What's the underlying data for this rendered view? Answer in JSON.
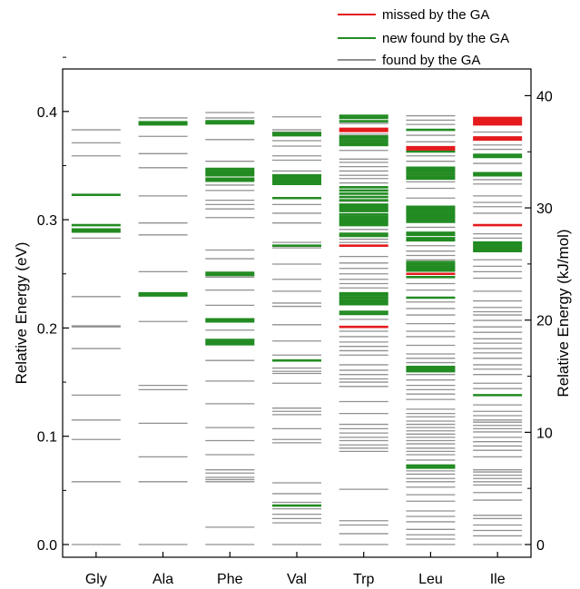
{
  "chart_data": {
    "type": "line",
    "title": "",
    "xlabel": "",
    "ylabel": "Relative Energy (eV)",
    "ylabel_right": "Relative Energy (kJ/mol)",
    "ylim": [
      -0.015,
      0.45
    ],
    "yticks": [
      0.0,
      0.1,
      0.2,
      0.3,
      0.4
    ],
    "ytick_labels": [
      "0.0",
      "0.1",
      "0.2",
      "0.3",
      "0.4"
    ],
    "ylim_right": [
      -1.447,
      43.42
    ],
    "yticks_right": [
      0,
      10,
      20,
      30,
      40
    ],
    "ytick_labels_right": [
      "0",
      "10",
      "20",
      "30",
      "40"
    ],
    "categories": [
      "Gly",
      "Ala",
      "Phe",
      "Val",
      "Trp",
      "Leu",
      "Ile"
    ],
    "legend": {
      "position": "top-right",
      "entries": [
        {
          "label": "missed by the GA",
          "color": "#e41a1c"
        },
        {
          "label": "new found by the GA",
          "color": "#228b22"
        },
        {
          "label": "found by the GA",
          "color": "#909090"
        }
      ]
    },
    "series": [
      {
        "name": "Gly",
        "found": [
          0.0,
          0.058,
          0.097,
          0.115,
          0.138,
          0.181,
          0.201,
          0.202,
          0.229,
          0.283,
          0.359,
          0.371,
          0.383
        ],
        "new_found": [
          0.289,
          0.291,
          0.295,
          0.323
        ],
        "missed": []
      },
      {
        "name": "Ala",
        "found": [
          0.0,
          0.058,
          0.081,
          0.112,
          0.143,
          0.147,
          0.206,
          0.252,
          0.286,
          0.297,
          0.322,
          0.348,
          0.361,
          0.377,
          0.394
        ],
        "new_found": [
          0.23,
          0.232,
          0.388,
          0.39
        ],
        "missed": []
      },
      {
        "name": "Phe",
        "found": [
          0.0,
          0.016,
          0.058,
          0.06,
          0.062,
          0.066,
          0.069,
          0.083,
          0.096,
          0.108,
          0.13,
          0.151,
          0.17,
          0.198,
          0.221,
          0.235,
          0.247,
          0.264,
          0.272,
          0.302,
          0.31,
          0.314,
          0.318,
          0.327,
          0.332,
          0.354,
          0.374,
          0.394,
          0.399
        ],
        "new_found": [
          0.185,
          0.187,
          0.189,
          0.206,
          0.208,
          0.249,
          0.251,
          0.336,
          0.338,
          0.341,
          0.343,
          0.345,
          0.347,
          0.389,
          0.391
        ],
        "missed": []
      },
      {
        "name": "Val",
        "found": [
          0.0,
          0.02,
          0.024,
          0.028,
          0.033,
          0.039,
          0.047,
          0.057,
          0.094,
          0.097,
          0.107,
          0.12,
          0.123,
          0.126,
          0.149,
          0.158,
          0.16,
          0.163,
          0.175,
          0.188,
          0.203,
          0.22,
          0.223,
          0.234,
          0.245,
          0.259,
          0.274,
          0.279,
          0.297,
          0.306,
          0.314,
          0.345,
          0.355,
          0.359,
          0.368,
          0.373,
          0.381,
          0.383,
          0.395
        ],
        "new_found": [
          0.036,
          0.17,
          0.276,
          0.32,
          0.333,
          0.335,
          0.337,
          0.339,
          0.341,
          0.378,
          0.38
        ],
        "missed": []
      },
      {
        "name": "Trp",
        "found": [
          0.0,
          0.01,
          0.018,
          0.022,
          0.051,
          0.086,
          0.089,
          0.092,
          0.096,
          0.099,
          0.103,
          0.107,
          0.111,
          0.121,
          0.132,
          0.146,
          0.15,
          0.153,
          0.157,
          0.161,
          0.166,
          0.175,
          0.179,
          0.183,
          0.187,
          0.192,
          0.197,
          0.208,
          0.237,
          0.241,
          0.245,
          0.25,
          0.255,
          0.26,
          0.266,
          0.279,
          0.282,
          0.291,
          0.317,
          0.334,
          0.338,
          0.341,
          0.345,
          0.349,
          0.353,
          0.356,
          0.364,
          0.379,
          0.389
        ],
        "new_found": [
          0.213,
          0.215,
          0.222,
          0.224,
          0.226,
          0.228,
          0.23,
          0.232,
          0.285,
          0.287,
          0.295,
          0.297,
          0.299,
          0.301,
          0.303,
          0.305,
          0.308,
          0.31,
          0.312,
          0.314,
          0.318,
          0.321,
          0.324,
          0.327,
          0.33,
          0.369,
          0.371,
          0.373,
          0.375,
          0.377,
          0.391,
          0.394,
          0.396
        ],
        "missed": [
          0.201,
          0.276,
          0.382,
          0.384
        ]
      },
      {
        "name": "Leu",
        "found": [
          0.0,
          0.005,
          0.009,
          0.014,
          0.021,
          0.026,
          0.031,
          0.04,
          0.046,
          0.053,
          0.058,
          0.061,
          0.065,
          0.068,
          0.078,
          0.083,
          0.086,
          0.089,
          0.093,
          0.096,
          0.099,
          0.102,
          0.105,
          0.108,
          0.111,
          0.114,
          0.118,
          0.121,
          0.125,
          0.134,
          0.139,
          0.143,
          0.147,
          0.152,
          0.157,
          0.168,
          0.172,
          0.176,
          0.184,
          0.192,
          0.197,
          0.204,
          0.212,
          0.218,
          0.224,
          0.235,
          0.241,
          0.263,
          0.267,
          0.271,
          0.276,
          0.293,
          0.305,
          0.32,
          0.329,
          0.335,
          0.354,
          0.359,
          0.372,
          0.378,
          0.388,
          0.392,
          0.396
        ],
        "new_found": [
          0.071,
          0.073,
          0.16,
          0.162,
          0.164,
          0.228,
          0.247,
          0.253,
          0.255,
          0.257,
          0.259,
          0.261,
          0.281,
          0.283,
          0.286,
          0.288,
          0.298,
          0.3,
          0.302,
          0.304,
          0.306,
          0.308,
          0.31,
          0.312,
          0.338,
          0.34,
          0.342,
          0.344,
          0.346,
          0.348,
          0.363,
          0.383
        ],
        "missed": [
          0.25,
          0.365,
          0.367
        ]
      },
      {
        "name": "Ile",
        "found": [
          0.0,
          0.008,
          0.013,
          0.018,
          0.024,
          0.027,
          0.041,
          0.048,
          0.055,
          0.058,
          0.061,
          0.064,
          0.067,
          0.069,
          0.081,
          0.087,
          0.091,
          0.095,
          0.099,
          0.104,
          0.107,
          0.11,
          0.113,
          0.115,
          0.119,
          0.123,
          0.129,
          0.144,
          0.149,
          0.157,
          0.162,
          0.166,
          0.172,
          0.177,
          0.181,
          0.186,
          0.19,
          0.196,
          0.201,
          0.207,
          0.212,
          0.215,
          0.219,
          0.225,
          0.234,
          0.246,
          0.252,
          0.257,
          0.263,
          0.283,
          0.287,
          0.306,
          0.312,
          0.316,
          0.322,
          0.333,
          0.337,
          0.352,
          0.365,
          0.369,
          0.381
        ],
        "new_found": [
          0.138,
          0.271,
          0.273,
          0.275,
          0.277,
          0.279,
          0.341,
          0.343,
          0.358,
          0.36
        ],
        "missed": [
          0.295,
          0.374,
          0.376,
          0.388,
          0.39,
          0.392,
          0.394
        ]
      }
    ]
  }
}
